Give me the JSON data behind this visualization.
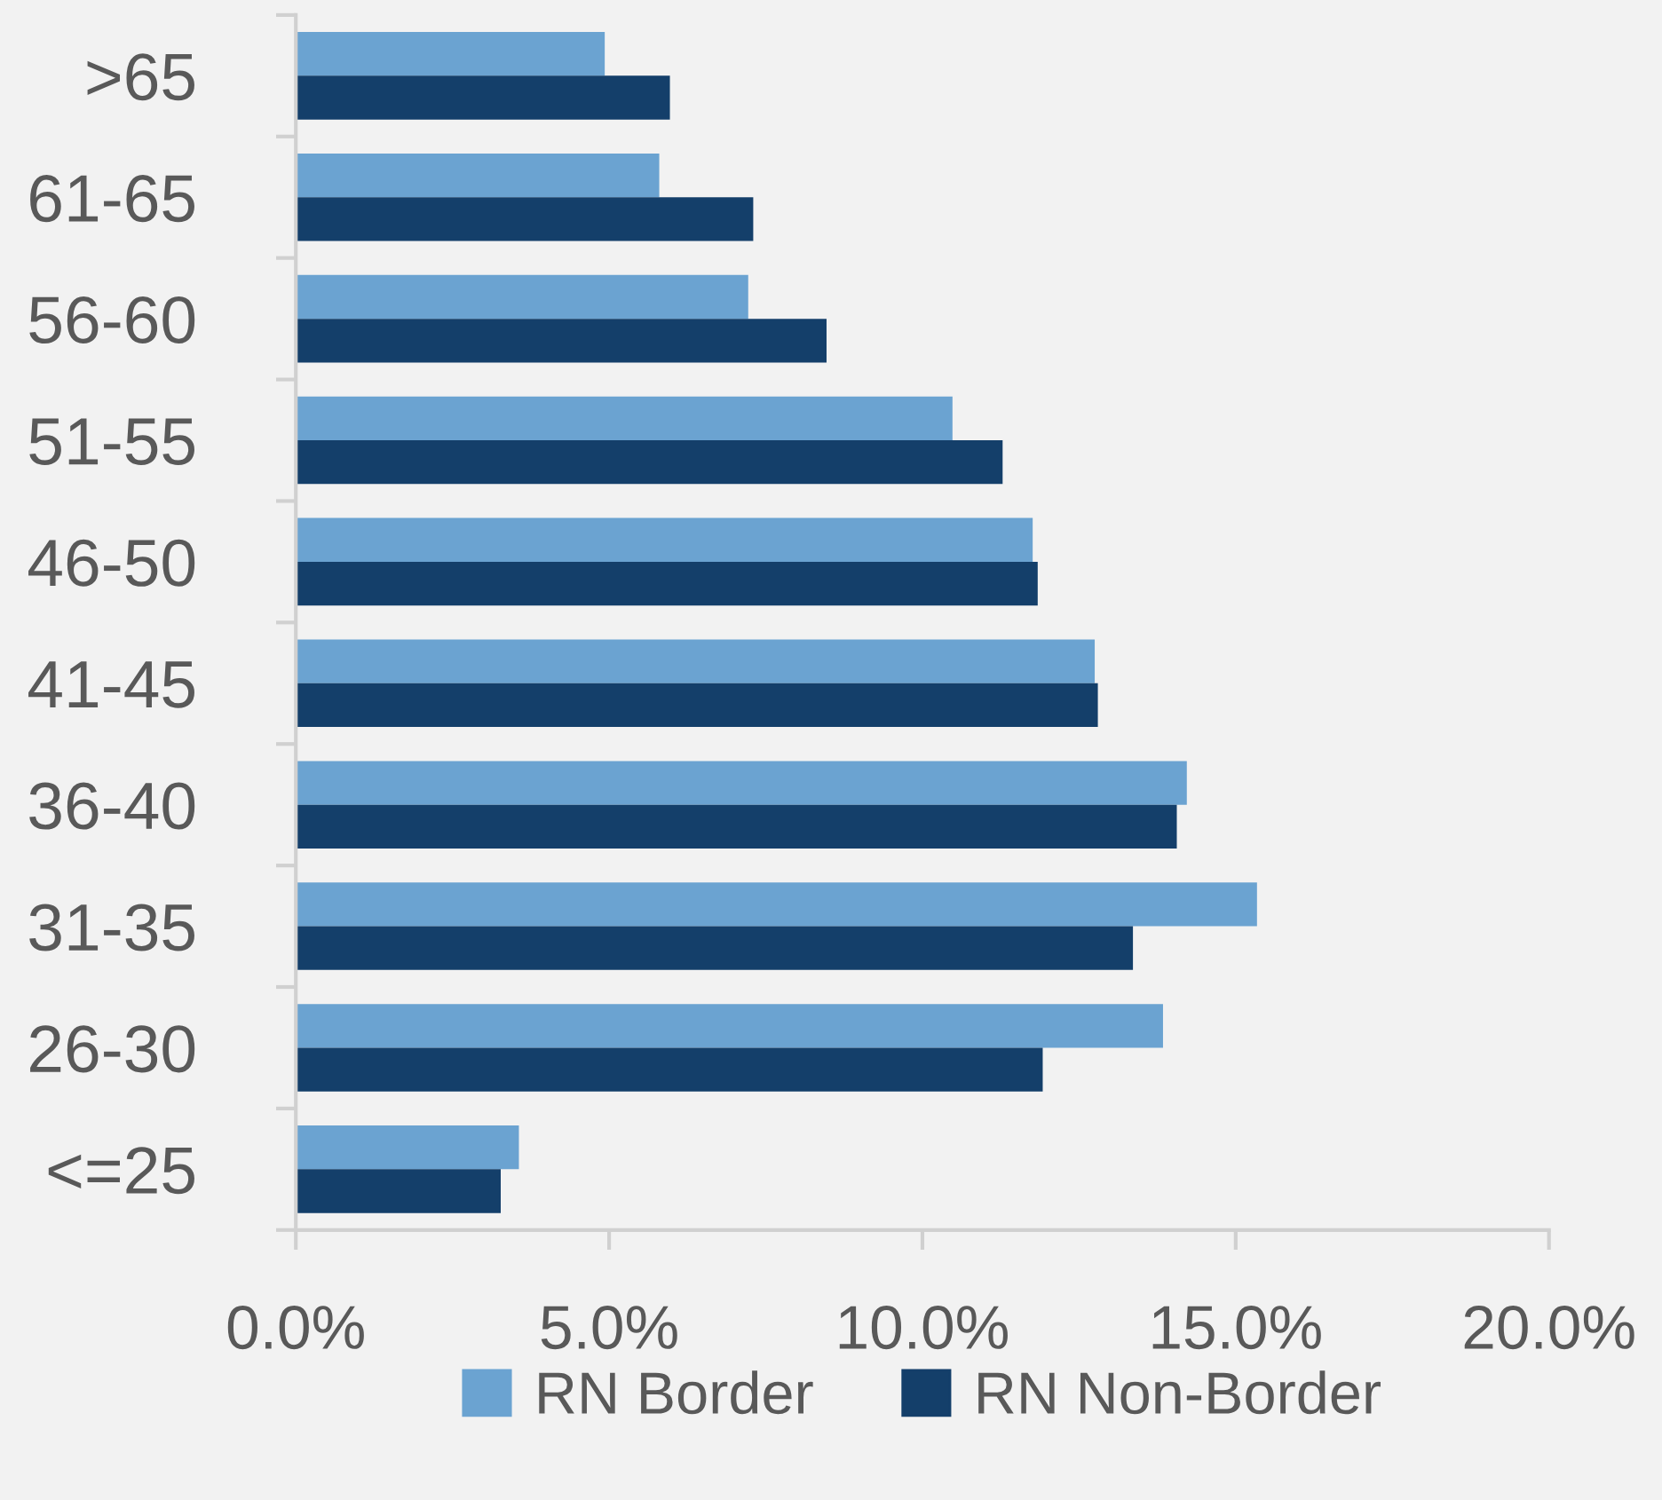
{
  "chart_data": {
    "type": "bar",
    "orientation": "horizontal",
    "categories": [
      ">65",
      "61-65",
      "56-60",
      "51-55",
      "46-50",
      "41-45",
      "36-40",
      "31-35",
      "26-30",
      "<=25"
    ],
    "series": [
      {
        "name": "RN Border",
        "color": "#6ba3d1",
        "values": [
          4.93,
          5.8,
          7.22,
          10.48,
          11.76,
          12.75,
          14.22,
          15.34,
          13.84,
          3.56
        ]
      },
      {
        "name": "RN Non-Border",
        "color": "#143f6a",
        "values": [
          5.97,
          7.3,
          8.47,
          11.28,
          11.84,
          12.8,
          14.06,
          13.36,
          11.92,
          3.27
        ]
      }
    ],
    "xlim": [
      0,
      20
    ],
    "xticks": [
      {
        "value": 0,
        "label": "0.0%"
      },
      {
        "value": 5,
        "label": "5.0%"
      },
      {
        "value": 10,
        "label": "10.0%"
      },
      {
        "value": 15,
        "label": "15.0%"
      },
      {
        "value": 20,
        "label": "20.0%"
      }
    ],
    "grid": false,
    "legend": "bottom"
  }
}
